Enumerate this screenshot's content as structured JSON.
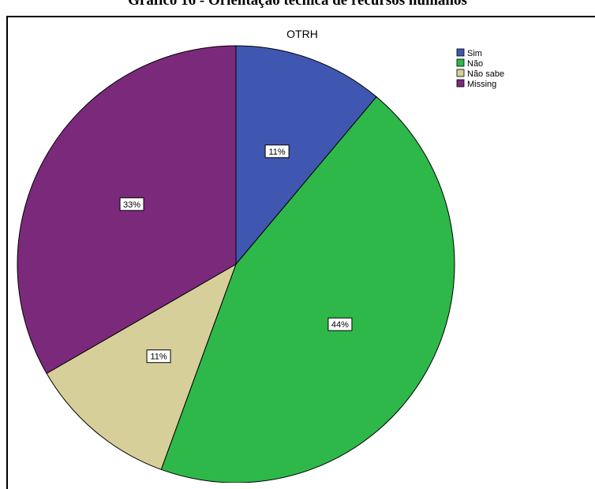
{
  "caption": "Gráfico 16 - Orientação técnica de recursos humanos",
  "chart_data": {
    "type": "pie",
    "title": "OTRH",
    "start_angle_deg": 0,
    "direction": "clockwise",
    "slices": [
      {
        "label": "Sim",
        "value": 11,
        "display": "11%",
        "color": "#3f57b0"
      },
      {
        "label": "Não",
        "value": 44,
        "display": "44%",
        "color": "#2eb84a"
      },
      {
        "label": "Não sabe",
        "value": 11,
        "display": "11%",
        "color": "#d6cf9a"
      },
      {
        "label": "Missing",
        "value": 33,
        "display": "33%",
        "color": "#7b2a7b"
      }
    ],
    "legend_position": "top-right"
  }
}
